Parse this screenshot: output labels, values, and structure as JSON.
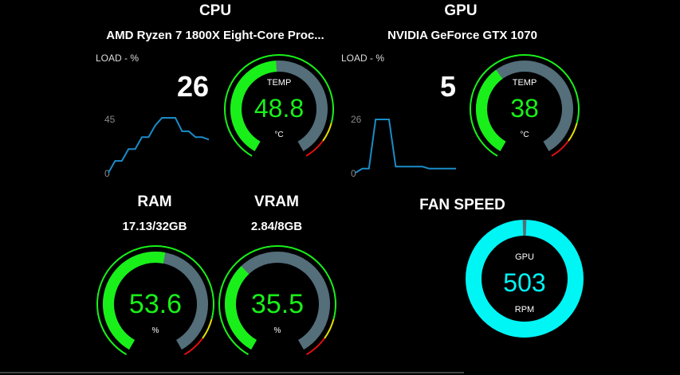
{
  "colors": {
    "background": "#000000",
    "gauge_fill": "#19f019",
    "gauge_track": "#546e7a",
    "warn": "#e8e000",
    "danger": "#e01010",
    "graph_line": "#1a8cc8",
    "fan_ring": "#00f5f5",
    "fan_gap": "#546e7a"
  },
  "cpu": {
    "title": "CPU",
    "name": "AMD Ryzen 7 1800X Eight-Core Proc...",
    "load_label": "LOAD - %",
    "load_value": "26",
    "graph": {
      "y_max_label": "45",
      "y_min_label": "0",
      "y_max": 45,
      "values": [
        0,
        10,
        10,
        20,
        20,
        30,
        30,
        40,
        48,
        48,
        48,
        35,
        35,
        30,
        30,
        28
      ]
    },
    "temp": {
      "label": "TEMP",
      "value": "48.8",
      "unit": "°C",
      "fraction": 0.488
    }
  },
  "gpu": {
    "title": "GPU",
    "name": "NVIDIA GeForce GTX 1070",
    "load_label": "LOAD - %",
    "load_value": "5",
    "graph": {
      "y_max_label": "26",
      "y_min_label": "0",
      "y_max": 26,
      "values": [
        0,
        2,
        2,
        26,
        26,
        26,
        3,
        3,
        3,
        3,
        3,
        2,
        2,
        2,
        2,
        2
      ]
    },
    "temp": {
      "label": "TEMP",
      "value": "38",
      "unit": "°C",
      "fraction": 0.38
    }
  },
  "ram": {
    "title": "RAM",
    "usage": "17.13/32GB",
    "value": "53.6",
    "unit": "%",
    "fraction": 0.536
  },
  "vram": {
    "title": "VRAM",
    "usage": "2.84/8GB",
    "value": "35.5",
    "unit": "%",
    "fraction": 0.355
  },
  "fan": {
    "title": "FAN SPEED",
    "label": "GPU",
    "value": "503",
    "unit": "RPM",
    "fraction": 0.99
  }
}
